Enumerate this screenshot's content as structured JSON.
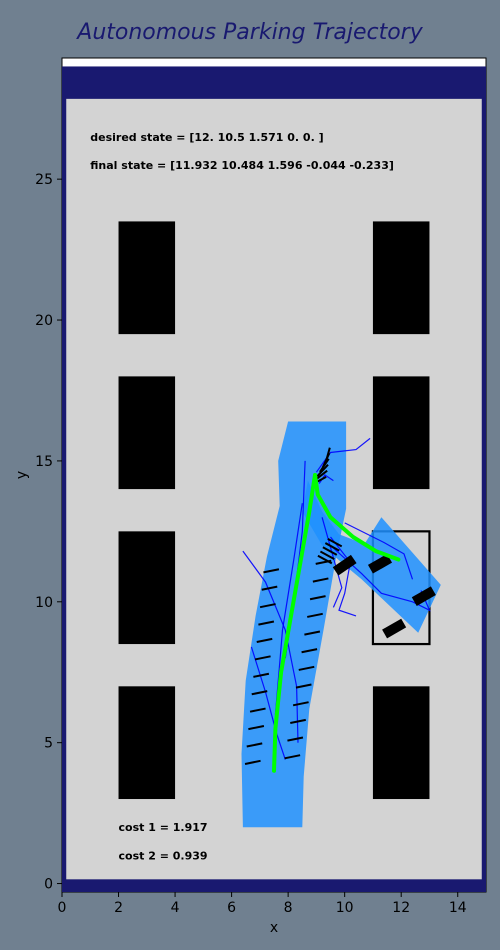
{
  "chart_data": {
    "type": "scatter",
    "title": "Autonomous Parking Trajectory",
    "xlabel": "x",
    "ylabel": "y",
    "xlim": [
      0,
      15
    ],
    "ylim": [
      -0.3,
      29.3
    ],
    "xticks": [
      0,
      2,
      4,
      6,
      8,
      10,
      12,
      14
    ],
    "yticks": [
      0,
      5,
      10,
      15,
      20,
      25
    ],
    "grid": false,
    "annotations": {
      "desired_state": "desired state = [12.    10.5    1.571  0.     0.   ]",
      "final_state": "final state = [11.932 10.484  1.596 -0.044 -0.233]",
      "cost1": "cost 1 = 1.917",
      "cost2": "cost 2 = 0.939"
    },
    "parking_lot": {
      "x_range": [
        0,
        15
      ],
      "y_range": [
        0,
        28
      ],
      "wall_color": "#191970",
      "floor_color": "#d3d3d3"
    },
    "obstacles": [
      {
        "x": 2,
        "y": 3,
        "w": 2,
        "h": 4
      },
      {
        "x": 2,
        "y": 8.5,
        "w": 2,
        "h": 4
      },
      {
        "x": 2,
        "y": 14,
        "w": 2,
        "h": 4
      },
      {
        "x": 2,
        "y": 19.5,
        "w": 2,
        "h": 4
      },
      {
        "x": 11,
        "y": 3,
        "w": 2,
        "h": 4
      },
      {
        "x": 11,
        "y": 14,
        "w": 2,
        "h": 4
      },
      {
        "x": 11,
        "y": 19.5,
        "w": 2,
        "h": 4
      }
    ],
    "target_spot": {
      "x": 11,
      "y": 8.5,
      "w": 2,
      "h": 4
    },
    "swept_area_color": "#1e90ff",
    "path": {
      "color": "#00ff00",
      "forward": [
        [
          7.5,
          4.0
        ],
        [
          7.55,
          5.5
        ],
        [
          7.75,
          7.5
        ],
        [
          8.1,
          9.5
        ],
        [
          8.45,
          11.5
        ],
        [
          8.75,
          13.2
        ],
        [
          8.95,
          14.5
        ]
      ],
      "reverse": [
        [
          8.95,
          14.5
        ],
        [
          9.05,
          13.8
        ],
        [
          9.5,
          13.0
        ],
        [
          10.3,
          12.3
        ],
        [
          11.1,
          11.8
        ],
        [
          11.9,
          11.5
        ]
      ]
    },
    "vehicle": {
      "position": [
        11.932,
        10.484
      ],
      "heading": 1.596,
      "length": 3,
      "width": 1.2
    },
    "samples_color": "#0000ff"
  }
}
